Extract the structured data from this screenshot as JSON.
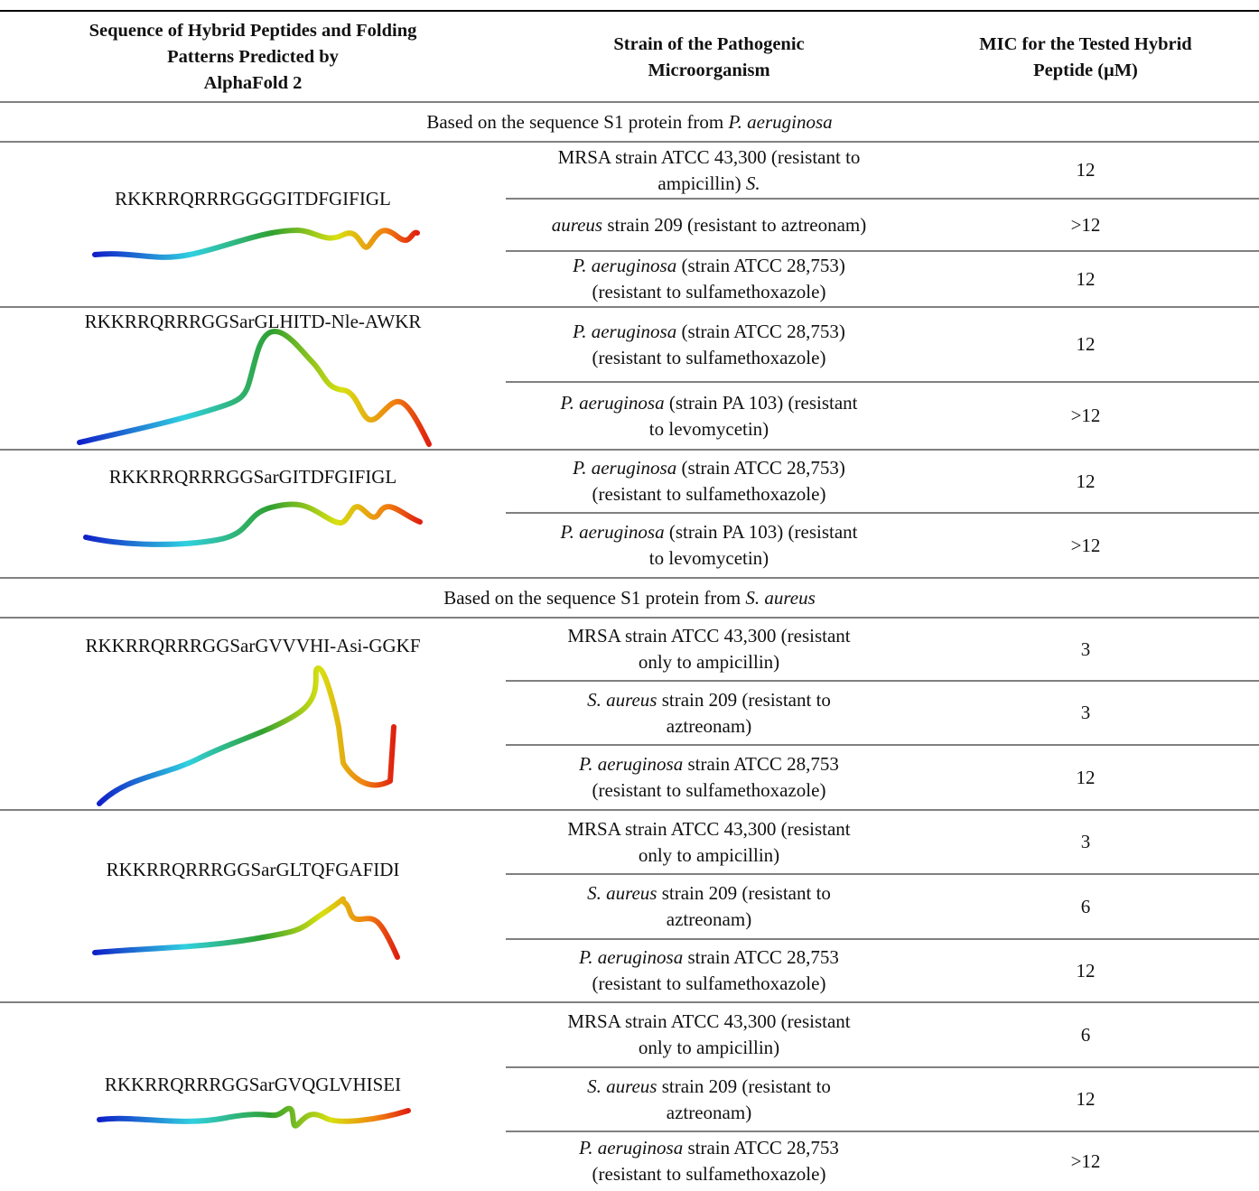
{
  "table": {
    "header": [
      [
        "Sequence of Hybrid Peptides and Folding",
        "Patterns Predicted by",
        "AlphaFold 2"
      ],
      [
        "Strain of the Pathogenic",
        "Microorganism"
      ],
      [
        "MIC for the Tested Hybrid",
        "Peptide (μM)"
      ]
    ],
    "sections": [
      {
        "text": "Based on the sequence S1 protein from ",
        "organism": "P. aeruginosa",
        "groups": [
          {
            "peptide": "RKKRRQRRRGGGGITDFGIFIGL",
            "rows": [
              {
                "strain": [
                  {
                    "text": "MRSA strain ATCC 43,300 (resistant to ampicillin) ",
                    "italic": false
                  },
                  {
                    "text": "S.",
                    "italic": true
                  }
                ],
                "mic": 12
              },
              {
                "strain": [
                  {
                    "text": "aureus",
                    "italic": true
                  },
                  {
                    "text": " strain 209 (resistant to aztreonam)",
                    "italic": false
                  }
                ],
                "mic": ">12"
              },
              {
                "strain": [
                  {
                    "text": "P. aeruginosa",
                    "italic": true
                  },
                  {
                    "text": " (strain ATCC 28,753) (resistant to sulfamethoxazole)",
                    "italic": false
                  }
                ],
                "mic": 12
              }
            ]
          },
          {
            "peptide": "RKKRRQRRRGGSarGLHITD-Nle-AWKR",
            "rows": [
              {
                "strain": [
                  {
                    "text": "P. aeruginosa",
                    "italic": true
                  },
                  {
                    "text": " (strain ATCC 28,753) (resistant to sulfamethoxazole)",
                    "italic": false
                  }
                ],
                "mic": 12
              },
              {
                "strain": [
                  {
                    "text": "P. aeruginosa",
                    "italic": true
                  },
                  {
                    "text": " (strain PA 103) (resistant to levomycetin)",
                    "italic": false
                  }
                ],
                "mic": ">12"
              }
            ]
          },
          {
            "peptide": "RKKRRQRRRGGSarGITDFGIFIGL",
            "rows": [
              {
                "strain": [
                  {
                    "text": "P. aeruginosa",
                    "italic": true
                  },
                  {
                    "text": " (strain ATCC 28,753) (resistant to sulfamethoxazole)",
                    "italic": false
                  }
                ],
                "mic": 12
              },
              {
                "strain": [
                  {
                    "text": "P. aeruginosa",
                    "italic": true
                  },
                  {
                    "text": " (strain PA 103) (resistant to levomycetin)",
                    "italic": false
                  }
                ],
                "mic": ">12"
              }
            ]
          }
        ]
      },
      {
        "text": "Based on the sequence S1 protein from ",
        "organism": "S. aureus",
        "groups": [
          {
            "peptide": "RKKRRQRRRGGSarGVVVHI-Asi-GGKF",
            "rows": [
              {
                "strain": [
                  {
                    "text": "MRSA strain ATCC 43,300 (resistant only to ampicillin)",
                    "italic": false
                  }
                ],
                "mic": 3
              },
              {
                "strain": [
                  {
                    "text": "S. aureus",
                    "italic": true
                  },
                  {
                    "text": " strain 209 (resistant to aztreonam)",
                    "italic": false
                  }
                ],
                "mic": 3
              },
              {
                "strain": [
                  {
                    "text": "P. aeruginosa",
                    "italic": true
                  },
                  {
                    "text": " strain ATCC 28,753 (resistant to sulfamethoxazole)",
                    "italic": false
                  }
                ],
                "mic": 12
              }
            ]
          },
          {
            "peptide": "RKKRRQRRRGGSarGLTQFGAFIDI",
            "rows": [
              {
                "strain": [
                  {
                    "text": "MRSA strain ATCC 43,300 (resistant only to ampicillin)",
                    "italic": false
                  }
                ],
                "mic": 3
              },
              {
                "strain": [
                  {
                    "text": "S. aureus",
                    "italic": true
                  },
                  {
                    "text": " strain 209 (resistant to aztreonam)",
                    "italic": false
                  }
                ],
                "mic": 6
              },
              {
                "strain": [
                  {
                    "text": "P. aeruginosa",
                    "italic": true
                  },
                  {
                    "text": " strain ATCC 28,753 (resistant to sulfamethoxazole)",
                    "italic": false
                  }
                ],
                "mic": 12
              }
            ]
          },
          {
            "peptide": "RKKRRQRRRGGSarGVQGLVHISEI",
            "rows": [
              {
                "strain": [
                  {
                    "text": "MRSA strain ATCC 43,300 (resistant only to ampicillin)",
                    "italic": false
                  }
                ],
                "mic": 6
              },
              {
                "strain": [
                  {
                    "text": "S. aureus",
                    "italic": true
                  },
                  {
                    "text": " strain 209 (resistant to aztreonam)",
                    "italic": false
                  }
                ],
                "mic": 12
              },
              {
                "strain": [
                  {
                    "text": "P. aeruginosa",
                    "italic": true
                  },
                  {
                    "text": " strain ATCC 28,753 (resistant to sulfamethoxazole)",
                    "italic": false
                  }
                ],
                "mic": ">12"
              }
            ]
          }
        ]
      }
    ]
  }
}
